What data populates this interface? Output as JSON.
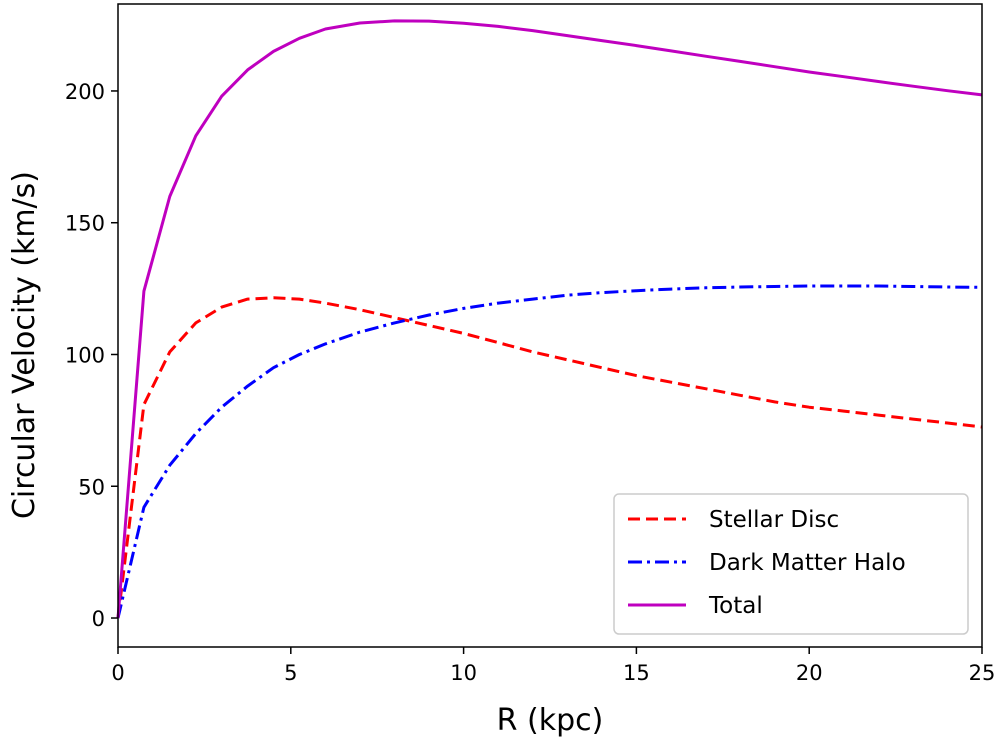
{
  "chart_data": {
    "type": "line",
    "title": "",
    "xlabel": "R (kpc)",
    "ylabel": "Circular Velocity (km/s)",
    "xlim": [
      0,
      25
    ],
    "ylim": [
      -11,
      233
    ],
    "xticks": [
      0,
      5,
      10,
      15,
      20,
      25
    ],
    "yticks": [
      0,
      50,
      100,
      150,
      200
    ],
    "grid": false,
    "legend_position": "lower-right",
    "series": [
      {
        "name": "Stellar Disc",
        "color": "#ff0000",
        "style": "dashed",
        "x": [
          0,
          0.75,
          1.5,
          2.25,
          3,
          3.75,
          4.5,
          5.25,
          6,
          7,
          8,
          9,
          10,
          11,
          12,
          13,
          14,
          15,
          16,
          17,
          18,
          19,
          20,
          21,
          22,
          23,
          24,
          25
        ],
        "y": [
          0,
          81,
          101,
          112,
          118,
          121,
          121.5,
          121,
          119.5,
          117,
          114,
          111,
          108,
          104.5,
          101,
          98,
          95,
          92,
          89.5,
          87,
          84.5,
          82,
          80,
          78.5,
          77,
          75.5,
          74,
          72.5
        ]
      },
      {
        "name": "Dark Matter Halo",
        "color": "#0000ff",
        "style": "dashdot",
        "x": [
          0,
          0.75,
          1.5,
          2.25,
          3,
          3.75,
          4.5,
          5.25,
          6,
          7,
          8,
          9,
          10,
          11,
          12,
          13,
          14,
          15,
          16,
          17,
          18,
          19,
          20,
          21,
          22,
          23,
          24,
          25
        ],
        "y": [
          0,
          42,
          58,
          70,
          80,
          88,
          95,
          100,
          104,
          108.5,
          112,
          115,
          117.5,
          119.5,
          121,
          122.5,
          123.5,
          124.2,
          124.8,
          125.3,
          125.6,
          125.8,
          126,
          126,
          126,
          125.8,
          125.6,
          125.5
        ]
      },
      {
        "name": "Total",
        "color": "#bf00bf",
        "style": "solid",
        "x": [
          0,
          0.75,
          1.5,
          2.25,
          3,
          3.75,
          4.5,
          5.25,
          6,
          7,
          8,
          9,
          10,
          11,
          12,
          13,
          14,
          15,
          16,
          17,
          18,
          19,
          20,
          21,
          22,
          23,
          24,
          25
        ],
        "y": [
          0,
          124,
          160,
          183,
          198,
          208,
          215,
          220,
          223.5,
          225.8,
          226.6,
          226.5,
          225.7,
          224.5,
          222.9,
          221,
          219.1,
          217.2,
          215.2,
          213.2,
          211.2,
          209.2,
          207.2,
          205.4,
          203.6,
          201.8,
          200.1,
          198.5
        ]
      }
    ]
  }
}
